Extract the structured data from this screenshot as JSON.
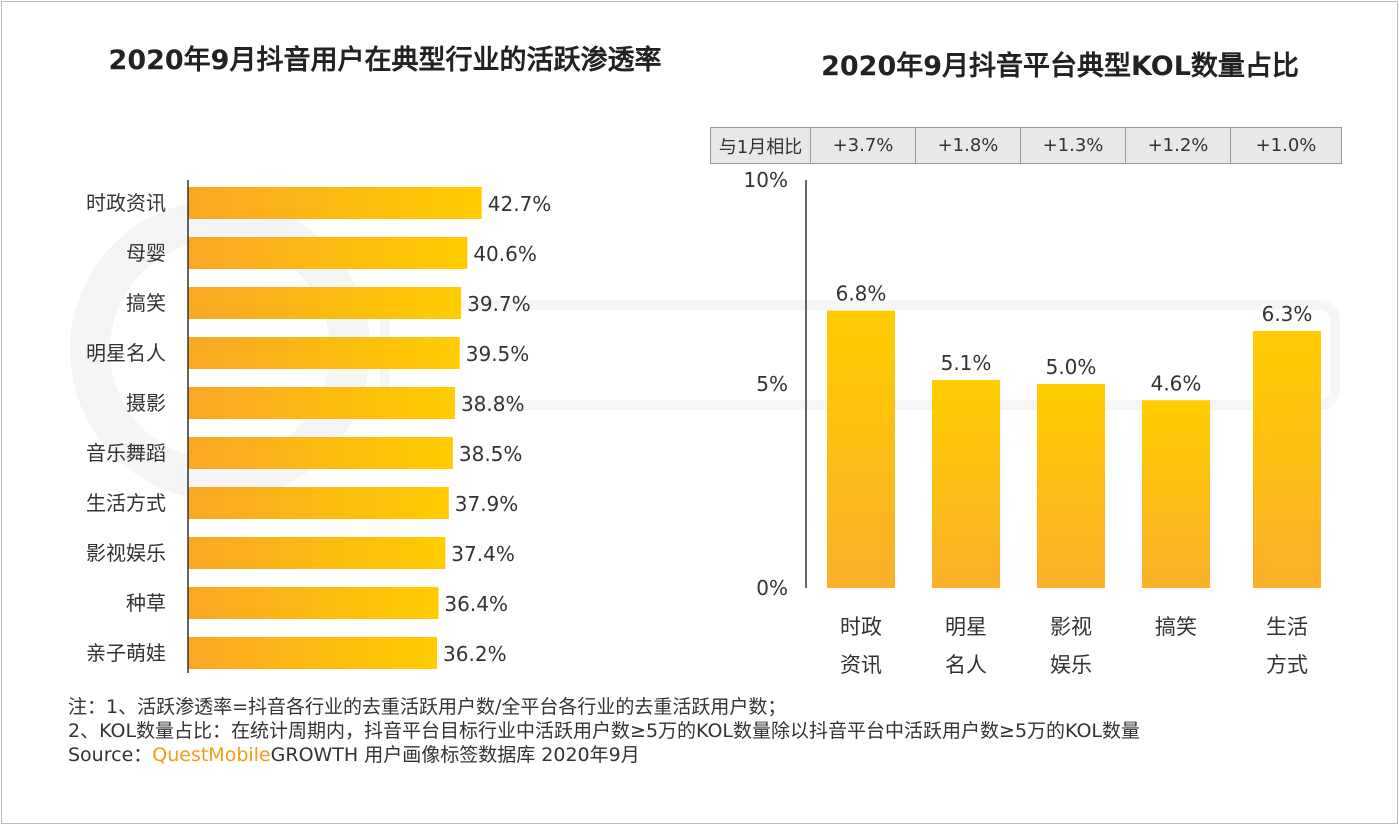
{
  "chart_data": [
    {
      "type": "bar",
      "orientation": "horizontal",
      "title": "2020年9月抖音用户在典型行业的活跃渗透率",
      "categories": [
        "时政资讯",
        "母婴",
        "搞笑",
        "明星名人",
        "摄影",
        "音乐舞蹈",
        "生活方式",
        "影视娱乐",
        "种草",
        "亲子萌娃"
      ],
      "values": [
        42.7,
        40.6,
        39.7,
        39.5,
        38.8,
        38.5,
        37.9,
        37.4,
        36.4,
        36.2
      ],
      "data_labels": [
        "42.7%",
        "40.6%",
        "39.7%",
        "39.5%",
        "38.8%",
        "38.5%",
        "37.9%",
        "37.4%",
        "36.4%",
        "36.2%"
      ],
      "unit": "%",
      "colors": [
        "#F9A825",
        "#FFCC00"
      ]
    },
    {
      "type": "bar",
      "title": "2020年9月抖音平台典型KOL数量占比",
      "categories": [
        "时政\n资讯",
        "明星\n名人",
        "影视\n娱乐",
        "搞笑",
        "生活\n方式"
      ],
      "category_lines": [
        [
          "时政",
          "资讯"
        ],
        [
          "明星",
          "名人"
        ],
        [
          "影视",
          "娱乐"
        ],
        [
          "搞笑",
          ""
        ],
        [
          "生活",
          "方式"
        ]
      ],
      "values": [
        6.8,
        5.1,
        5.0,
        4.6,
        6.3
      ],
      "data_labels": [
        "6.8%",
        "5.1%",
        "5.0%",
        "4.6%",
        "6.3%"
      ],
      "ylim": [
        0,
        10
      ],
      "yticks": [
        "0%",
        "5%",
        "10%"
      ],
      "ytick_values": [
        0,
        5,
        10
      ],
      "comparison": {
        "label": "与1月相比",
        "values": [
          "+3.7%",
          "+1.8%",
          "+1.3%",
          "+1.2%",
          "+1.0%"
        ]
      },
      "colors": [
        "#FFCC00",
        "#FBB02A"
      ]
    }
  ],
  "titles": {
    "left": "2020年9月抖音用户在典型行业的活跃渗透率",
    "right": "2020年9月抖音平台典型KOL数量占比"
  },
  "watermark": "QUESTMOBILE",
  "notes": {
    "line1": "注：1、活跃渗透率=抖音各行业的去重活跃用户数/全平台各行业的去重活跃用户数；",
    "line2": "2、KOL数量占比：在统计周期内，抖音平台目标行业中活跃用户数≥5万的KOL数量除以抖音平台中活跃用户数≥5万的KOL数量",
    "source_prefix": "Source：",
    "source_brand": "QuestMobile",
    "source_rest": "GROWTH 用户画像标签数据库  2020年9月"
  }
}
